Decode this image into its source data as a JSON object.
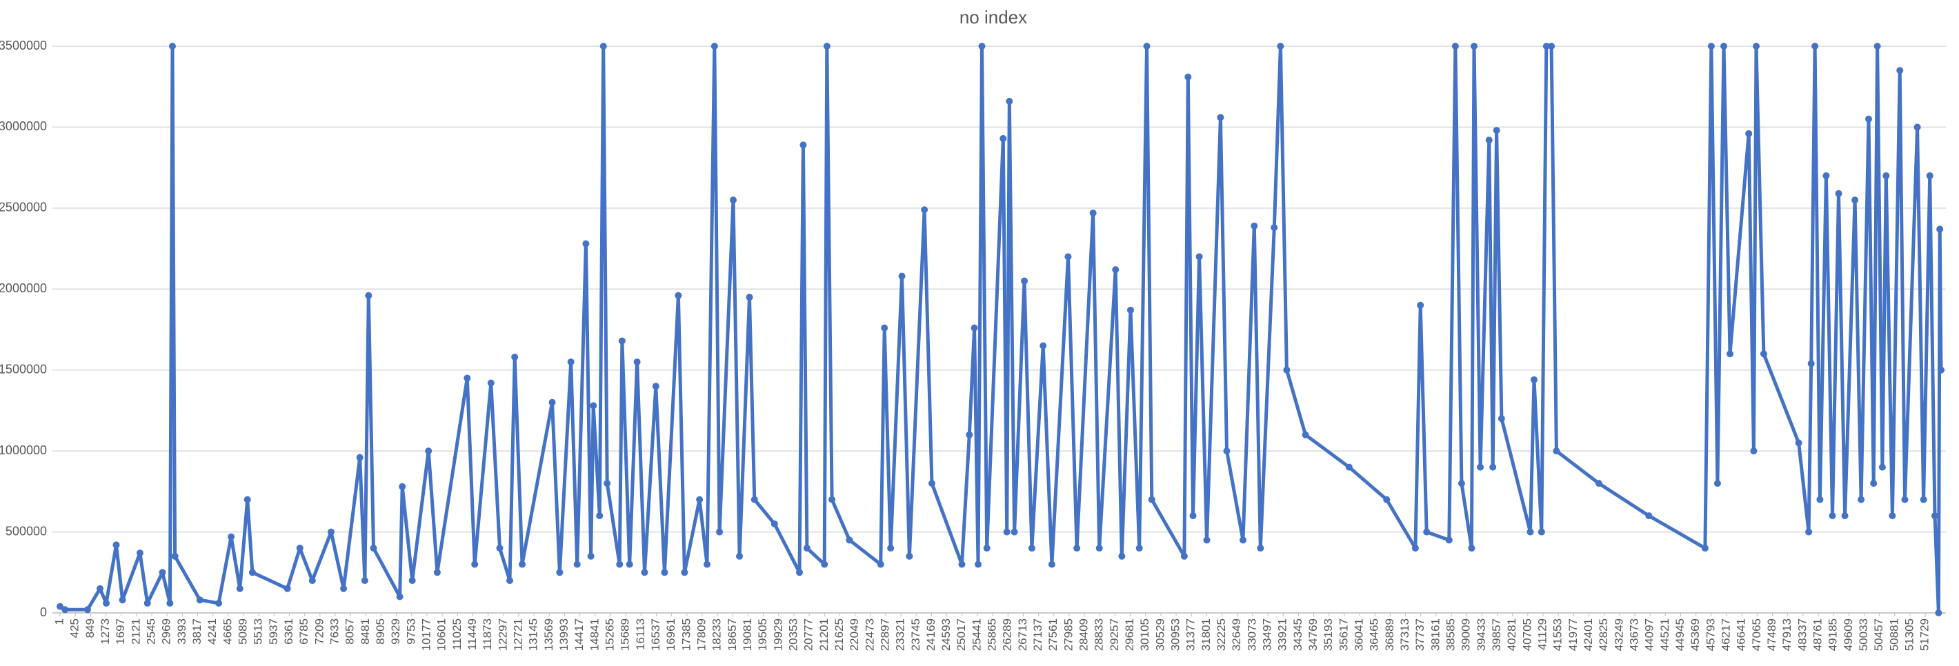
{
  "chart_data": {
    "type": "line",
    "title": "no index",
    "color": "#4472c4",
    "grid": true,
    "xlim": [
      -210,
      52300
    ],
    "ylim": [
      0,
      3500000
    ],
    "yticks": [
      0,
      500000,
      1000000,
      1500000,
      2000000,
      2500000,
      3000000,
      3500000
    ],
    "xticks": [
      1,
      425,
      849,
      1273,
      1697,
      2121,
      2545,
      2969,
      3393,
      3817,
      4241,
      4665,
      5089,
      5513,
      5937,
      6361,
      6785,
      7209,
      7633,
      8057,
      8481,
      8905,
      9329,
      9753,
      10177,
      10601,
      11025,
      11449,
      11873,
      12297,
      12721,
      13145,
      13569,
      13993,
      14417,
      14841,
      15265,
      15689,
      16113,
      16537,
      16961,
      17385,
      17809,
      18233,
      18657,
      19081,
      19505,
      19929,
      20353,
      20777,
      21201,
      21625,
      22049,
      22473,
      22897,
      23321,
      23745,
      24169,
      24593,
      25017,
      25441,
      25865,
      26289,
      26713,
      27137,
      27561,
      27985,
      28409,
      28833,
      29257,
      29681,
      30105,
      30529,
      30953,
      31377,
      31801,
      32225,
      32649,
      33073,
      33497,
      33921,
      34345,
      34769,
      35193,
      35617,
      36041,
      36465,
      36889,
      37313,
      37737,
      38161,
      38585,
      39009,
      39433,
      39857,
      40281,
      40705,
      41129,
      41553,
      41977,
      42401,
      42825,
      43249,
      43673,
      44097,
      44521,
      44945,
      45369,
      45793,
      46217,
      46641,
      47065,
      47489,
      47913,
      48337,
      48761,
      49185,
      49609,
      50033,
      50457,
      50881,
      51305,
      51729
    ],
    "x": [
      1,
      140,
      763,
      1110,
      1283,
      1560,
      1733,
      2218,
      2425,
      2841,
      3049,
      3118,
      3188,
      3880,
      4400,
      4746,
      4989,
      5197,
      5335,
      6305,
      6652,
      6998,
      7518,
      7864,
      8315,
      8453,
      8557,
      8695,
      9423,
      9492,
      9769,
      10219,
      10462,
      11293,
      11501,
      11952,
      12195,
      12472,
      12610,
      12818,
      13650,
      13857,
      14169,
      14342,
      14585,
      14723,
      14792,
      14965,
      15069,
      15173,
      15519,
      15588,
      15796,
      16004,
      16212,
      16524,
      16766,
      17147,
      17320,
      17736,
      17944,
      18151,
      18290,
      18671,
      18844,
      19121,
      19260,
      19814,
      20507,
      20611,
      20715,
      21200,
      21269,
      21408,
      21893,
      22759,
      22863,
      23036,
      23348,
      23556,
      23972,
      24180,
      25011,
      25219,
      25358,
      25462,
      25566,
      25704,
      26155,
      26259,
      26328,
      26467,
      26744,
      26952,
      27264,
      27506,
      27957,
      28199,
      28649,
      28823,
      29273,
      29447,
      29689,
      29932,
      30139,
      30278,
      31179,
      31283,
      31421,
      31595,
      31803,
      32184,
      32357,
      32808,
      33119,
      33292,
      33673,
      33847,
      34020,
      34540,
      35752,
      36791,
      37588,
      37727,
      37900,
      38523,
      38697,
      38870,
      39147,
      39216,
      39389,
      39632,
      39736,
      39840,
      39978,
      40775,
      40879,
      41087,
      41221,
      41360,
      41499,
      42676,
      44062,
      45621,
      45794,
      45967,
      46140,
      46313,
      46833,
      46971,
      47040,
      47248,
      48218,
      48495,
      48564,
      48668,
      48807,
      48980,
      49153,
      49326,
      49499,
      49776,
      49949,
      50157,
      50295,
      50399,
      50538,
      50642,
      50815,
      51023,
      51161,
      51508,
      51681,
      51854,
      51993,
      52097,
      52131,
      52166
    ],
    "values": [
      40000,
      20000,
      20000,
      150000,
      60000,
      420000,
      80000,
      370000,
      60000,
      250000,
      60000,
      3500000,
      350000,
      80000,
      60000,
      470000,
      150000,
      700000,
      250000,
      150000,
      400000,
      200000,
      500000,
      150000,
      960000,
      200000,
      1960000,
      400000,
      100000,
      780000,
      200000,
      1000000,
      250000,
      1450000,
      300000,
      1420000,
      400000,
      200000,
      1580000,
      300000,
      1300000,
      250000,
      1550000,
      300000,
      2280000,
      350000,
      1280000,
      600000,
      3500000,
      800000,
      300000,
      1680000,
      300000,
      1550000,
      250000,
      1400000,
      250000,
      1960000,
      250000,
      700000,
      300000,
      3500000,
      500000,
      2550000,
      350000,
      1950000,
      700000,
      550000,
      250000,
      2890000,
      400000,
      300000,
      3500000,
      700000,
      450000,
      300000,
      1760000,
      400000,
      2080000,
      350000,
      2490000,
      800000,
      300000,
      1100000,
      1760000,
      300000,
      3500000,
      400000,
      2930000,
      500000,
      3160000,
      500000,
      2050000,
      400000,
      1650000,
      300000,
      2200000,
      400000,
      2470000,
      400000,
      2120000,
      350000,
      1870000,
      400000,
      3500000,
      700000,
      350000,
      3310000,
      600000,
      2200000,
      450000,
      3060000,
      1000000,
      450000,
      2390000,
      400000,
      2380000,
      3500000,
      1500000,
      1100000,
      900000,
      700000,
      400000,
      1900000,
      500000,
      450000,
      3500000,
      800000,
      400000,
      3500000,
      900000,
      2920000,
      900000,
      2980000,
      1200000,
      500000,
      1440000,
      500000,
      3500000,
      3500000,
      1000000,
      800000,
      600000,
      400000,
      3500000,
      800000,
      3500000,
      1600000,
      2960000,
      1000000,
      3500000,
      1600000,
      1050000,
      500000,
      1540000,
      3500000,
      700000,
      2700000,
      600000,
      2590000,
      600000,
      2550000,
      700000,
      3050000,
      800000,
      3500000,
      900000,
      2700000,
      600000,
      3350000,
      700000,
      3000000,
      700000,
      2700000,
      600000,
      0,
      2370000,
      1500000
    ]
  }
}
